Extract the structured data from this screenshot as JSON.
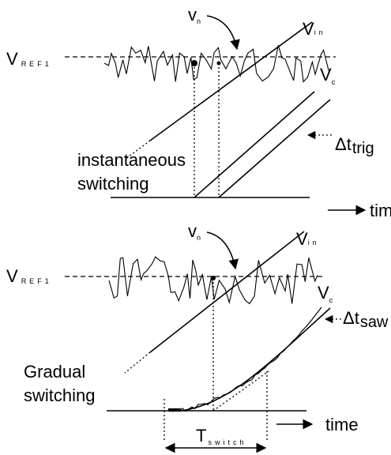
{
  "panels": [
    {
      "noise_label": {
        "main": "v",
        "sub": "n"
      },
      "input_label": {
        "main": "V",
        "sub": "in"
      },
      "ref_label": {
        "main": "V",
        "sub": "REF1"
      },
      "output_label": {
        "main": "V",
        "sub": "c"
      },
      "delay_label": {
        "main": "Δt",
        "sub": "trig"
      },
      "mode_label": [
        "instantaneous",
        "switching"
      ],
      "axis_label": "time"
    },
    {
      "noise_label": {
        "main": "v",
        "sub": "n"
      },
      "input_label": {
        "main": "V",
        "sub": "in"
      },
      "ref_label": {
        "main": "V",
        "sub": "REF1"
      },
      "output_label": {
        "main": "V",
        "sub": "c"
      },
      "delay_label": {
        "main": "Δt",
        "sub": "saw"
      },
      "mode_label": [
        "Gradual",
        "switching"
      ],
      "axis_label": "time",
      "period_label": {
        "main": "T",
        "sub": "switch"
      }
    }
  ]
}
